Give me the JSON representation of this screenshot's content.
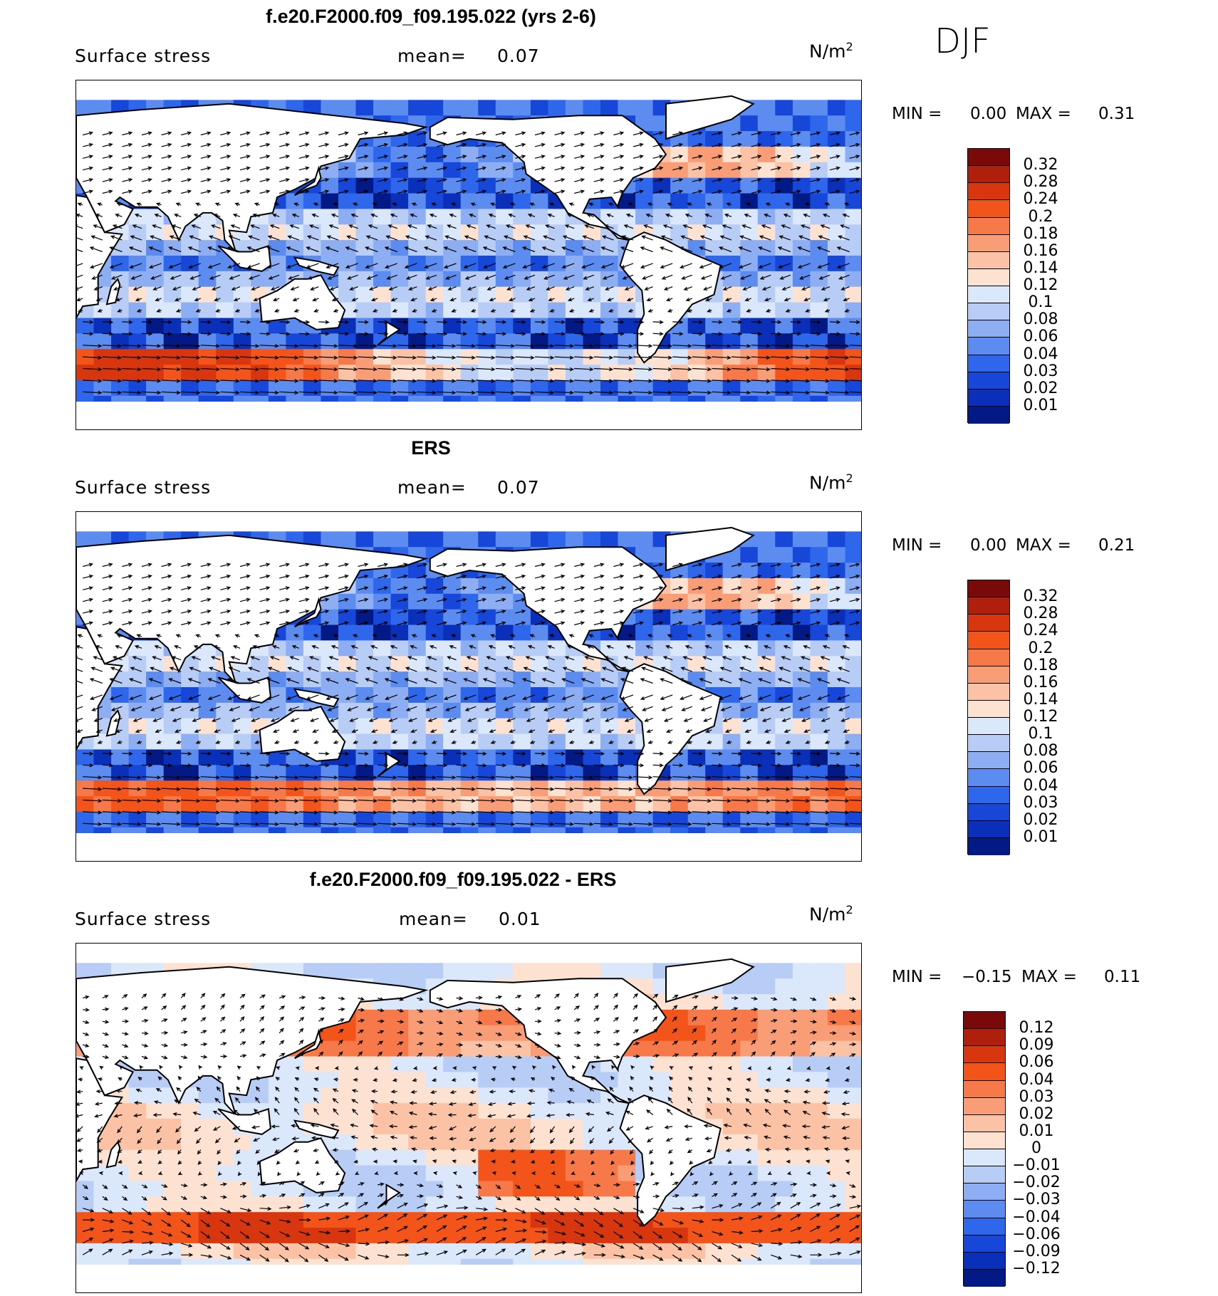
{
  "season": "DJF",
  "panels": [
    {
      "id": "model",
      "title": "f.e20.F2000.f09_f09.195.022 (yrs 2-6)",
      "variable": "Surface stress",
      "mean_label": "mean=",
      "mean_value": "0.07",
      "units": "N/m",
      "units_exp": "2",
      "min_label": "MIN =",
      "min_value": "0.00",
      "max_label": "MAX =",
      "max_value": "0.31",
      "field": "magnitude"
    },
    {
      "id": "obs",
      "title": "ERS",
      "variable": "Surface stress",
      "mean_label": "mean=",
      "mean_value": "0.07",
      "units": "N/m",
      "units_exp": "2",
      "min_label": "MIN =",
      "min_value": "0.00",
      "max_label": "MAX =",
      "max_value": "0.21",
      "field": "magnitude"
    },
    {
      "id": "diff",
      "title": "f.e20.F2000.f09_f09.195.022 - ERS",
      "variable": "Surface stress",
      "mean_label": "mean=",
      "mean_value": "0.01",
      "units": "N/m",
      "units_exp": "2",
      "min_label": "MIN =",
      "min_value": "−0.15",
      "max_label": "MAX =",
      "max_value": "0.11",
      "field": "difference"
    }
  ],
  "colorbars": {
    "magnitude": {
      "labels": [
        "0.32",
        "0.28",
        "0.24",
        "0.2",
        "0.18",
        "0.16",
        "0.14",
        "0.12",
        "0.1",
        "0.08",
        "0.06",
        "0.04",
        "0.03",
        "0.02",
        "0.01"
      ],
      "colors": [
        "#7a0a0a",
        "#b01f0c",
        "#d8360f",
        "#f2541a",
        "#f7794a",
        "#f99d77",
        "#fbc2a5",
        "#fde2d2",
        "#dbe8fb",
        "#b8cdf6",
        "#8daef3",
        "#5d8cf0",
        "#2e67ec",
        "#1647d8",
        "#0a2fb8",
        "#031a86"
      ]
    },
    "difference": {
      "labels": [
        "0.12",
        "0.09",
        "0.06",
        "0.04",
        "0.03",
        "0.02",
        "0.01",
        "0",
        "−0.01",
        "−0.02",
        "−0.03",
        "−0.04",
        "−0.06",
        "−0.09",
        "−0.12"
      ],
      "colors": [
        "#7a0a0a",
        "#b01f0c",
        "#d8360f",
        "#f2541a",
        "#f7794a",
        "#f99d77",
        "#fbc2a5",
        "#fde2d2",
        "#dbe8fb",
        "#b8cdf6",
        "#8daef3",
        "#5d8cf0",
        "#2e67ec",
        "#1647d8",
        "#0a2fb8",
        "#031a86"
      ]
    }
  }
}
